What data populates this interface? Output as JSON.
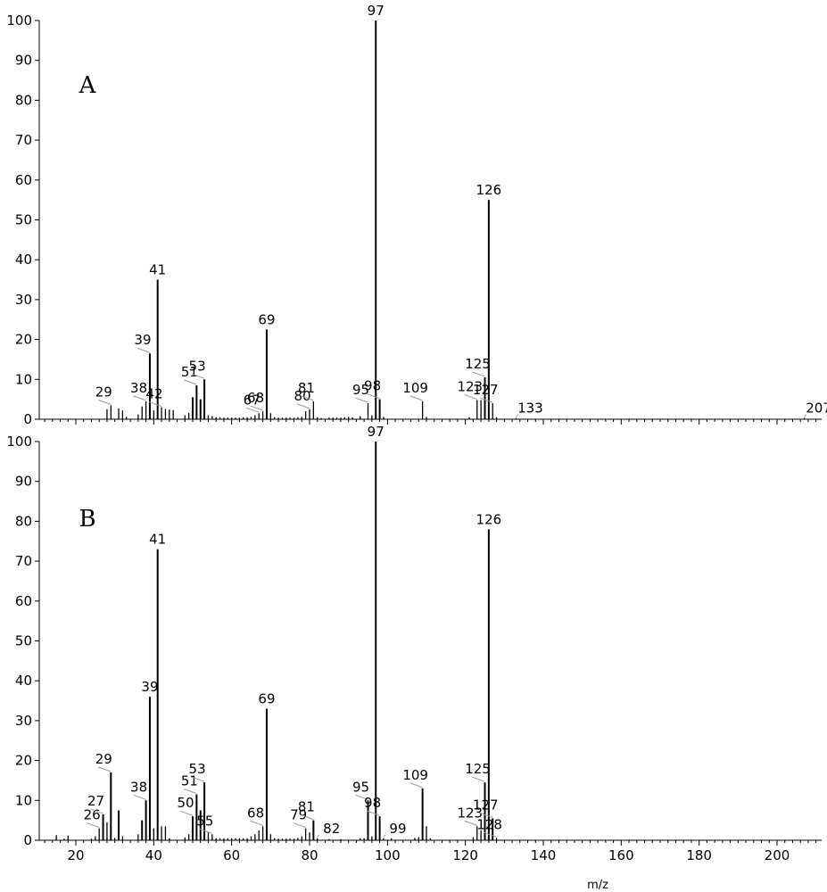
{
  "chart_data": [
    {
      "type": "bar",
      "panel_label": "A",
      "xlim": [
        12,
        210
      ],
      "ylim": [
        0,
        100
      ],
      "yticks": [
        0,
        10,
        20,
        30,
        40,
        50,
        60,
        70,
        80,
        90,
        100
      ],
      "peaks": [
        {
          "x": 28,
          "y": 2.5
        },
        {
          "x": 29,
          "y": 3.5,
          "label": "29"
        },
        {
          "x": 31,
          "y": 2.7
        },
        {
          "x": 32,
          "y": 2.2
        },
        {
          "x": 33,
          "y": 0.6
        },
        {
          "x": 36,
          "y": 1.2
        },
        {
          "x": 37,
          "y": 3.2
        },
        {
          "x": 38,
          "y": 4.5,
          "label": "38"
        },
        {
          "x": 39,
          "y": 16.5,
          "label": "39"
        },
        {
          "x": 40,
          "y": 2.2
        },
        {
          "x": 41,
          "y": 35,
          "label": "41"
        },
        {
          "x": 42,
          "y": 3.0,
          "label": "42"
        },
        {
          "x": 43,
          "y": 2.6
        },
        {
          "x": 44,
          "y": 2.4
        },
        {
          "x": 45,
          "y": 2.3
        },
        {
          "x": 48,
          "y": 1.0
        },
        {
          "x": 49,
          "y": 1.6
        },
        {
          "x": 50,
          "y": 5.5
        },
        {
          "x": 51,
          "y": 8.5,
          "label": "51"
        },
        {
          "x": 52,
          "y": 5.0
        },
        {
          "x": 53,
          "y": 10,
          "label": "53"
        },
        {
          "x": 54,
          "y": 1.0
        },
        {
          "x": 55,
          "y": 0.8
        },
        {
          "x": 56,
          "y": 0.5
        },
        {
          "x": 57,
          "y": 0.5
        },
        {
          "x": 58,
          "y": 0.4
        },
        {
          "x": 59,
          "y": 0.4
        },
        {
          "x": 60,
          "y": 0.4
        },
        {
          "x": 61,
          "y": 0.4
        },
        {
          "x": 62,
          "y": 0.4
        },
        {
          "x": 63,
          "y": 0.5
        },
        {
          "x": 64,
          "y": 0.5
        },
        {
          "x": 65,
          "y": 0.6
        },
        {
          "x": 66,
          "y": 1.0
        },
        {
          "x": 67,
          "y": 1.5,
          "label": "67"
        },
        {
          "x": 68,
          "y": 2.0,
          "label": "68"
        },
        {
          "x": 69,
          "y": 22.5,
          "label": "69"
        },
        {
          "x": 70,
          "y": 1.5
        },
        {
          "x": 71,
          "y": 0.5
        },
        {
          "x": 72,
          "y": 0.4
        },
        {
          "x": 73,
          "y": 0.4
        },
        {
          "x": 74,
          "y": 0.4
        },
        {
          "x": 75,
          "y": 0.4
        },
        {
          "x": 76,
          "y": 0.4
        },
        {
          "x": 77,
          "y": 0.5
        },
        {
          "x": 78,
          "y": 0.6
        },
        {
          "x": 79,
          "y": 2.0
        },
        {
          "x": 80,
          "y": 2.5,
          "label": "80"
        },
        {
          "x": 81,
          "y": 4.5,
          "label": "81"
        },
        {
          "x": 82,
          "y": 0.5
        },
        {
          "x": 83,
          "y": 0.3
        },
        {
          "x": 85,
          "y": 0.4
        },
        {
          "x": 86,
          "y": 0.4
        },
        {
          "x": 87,
          "y": 0.4
        },
        {
          "x": 88,
          "y": 0.4
        },
        {
          "x": 89,
          "y": 0.5
        },
        {
          "x": 90,
          "y": 0.6
        },
        {
          "x": 91,
          "y": 0.5
        },
        {
          "x": 93,
          "y": 0.8
        },
        {
          "x": 95,
          "y": 4.0,
          "label": "95"
        },
        {
          "x": 96,
          "y": 1.0
        },
        {
          "x": 97,
          "y": 100,
          "label": "97"
        },
        {
          "x": 98,
          "y": 5.0,
          "label": "98"
        },
        {
          "x": 99,
          "y": 0.6
        },
        {
          "x": 109,
          "y": 4.5,
          "label": "109"
        },
        {
          "x": 110,
          "y": 0.6
        },
        {
          "x": 121,
          "y": 0.5
        },
        {
          "x": 123,
          "y": 4.8,
          "label": "123"
        },
        {
          "x": 124,
          "y": 4.8
        },
        {
          "x": 125,
          "y": 10.5,
          "label": "125"
        },
        {
          "x": 126,
          "y": 55,
          "label": "126"
        },
        {
          "x": 127,
          "y": 4.0,
          "label": "127"
        },
        {
          "x": 128,
          "y": 0.5
        },
        {
          "x": 133,
          "y": 0.3,
          "label": "133"
        },
        {
          "x": 207,
          "y": 0.3,
          "label": "207"
        }
      ]
    },
    {
      "type": "bar",
      "panel_label": "B",
      "xlim": [
        12,
        210
      ],
      "ylim": [
        0,
        100
      ],
      "yticks": [
        0,
        10,
        20,
        30,
        40,
        50,
        60,
        70,
        80,
        90,
        100
      ],
      "xticks": [
        20,
        40,
        60,
        80,
        100,
        120,
        140,
        160,
        180,
        200
      ],
      "xlabel": "m/z",
      "peaks": [
        {
          "x": 15,
          "y": 1.3
        },
        {
          "x": 17,
          "y": 0.4
        },
        {
          "x": 18,
          "y": 1.2
        },
        {
          "x": 24,
          "y": 0.4
        },
        {
          "x": 25,
          "y": 1.0
        },
        {
          "x": 26,
          "y": 3.0,
          "label": "26"
        },
        {
          "x": 27,
          "y": 6.5,
          "label": "27"
        },
        {
          "x": 28,
          "y": 4.5
        },
        {
          "x": 29,
          "y": 17,
          "label": "29"
        },
        {
          "x": 30,
          "y": 0.6
        },
        {
          "x": 31,
          "y": 7.5
        },
        {
          "x": 32,
          "y": 1.0
        },
        {
          "x": 36,
          "y": 1.5
        },
        {
          "x": 37,
          "y": 5.0
        },
        {
          "x": 38,
          "y": 10,
          "label": "38"
        },
        {
          "x": 39,
          "y": 36,
          "label": "39"
        },
        {
          "x": 40,
          "y": 3.0
        },
        {
          "x": 41,
          "y": 73,
          "label": "41"
        },
        {
          "x": 42,
          "y": 3.5
        },
        {
          "x": 43,
          "y": 3.5
        },
        {
          "x": 44,
          "y": 0.5
        },
        {
          "x": 48,
          "y": 0.7
        },
        {
          "x": 49,
          "y": 1.5
        },
        {
          "x": 50,
          "y": 6.0,
          "label": "50"
        },
        {
          "x": 51,
          "y": 11.5,
          "label": "51"
        },
        {
          "x": 52,
          "y": 7.5
        },
        {
          "x": 53,
          "y": 14.5,
          "label": "53"
        },
        {
          "x": 54,
          "y": 2.0
        },
        {
          "x": 55,
          "y": 1.5,
          "label": "55"
        },
        {
          "x": 56,
          "y": 0.5
        },
        {
          "x": 57,
          "y": 0.5
        },
        {
          "x": 58,
          "y": 0.5
        },
        {
          "x": 59,
          "y": 0.5
        },
        {
          "x": 60,
          "y": 0.5
        },
        {
          "x": 61,
          "y": 0.5
        },
        {
          "x": 62,
          "y": 0.5
        },
        {
          "x": 63,
          "y": 0.5
        },
        {
          "x": 64,
          "y": 0.5
        },
        {
          "x": 65,
          "y": 1.0
        },
        {
          "x": 66,
          "y": 1.5
        },
        {
          "x": 67,
          "y": 2.5
        },
        {
          "x": 68,
          "y": 3.5,
          "label": "68"
        },
        {
          "x": 69,
          "y": 33,
          "label": "69"
        },
        {
          "x": 70,
          "y": 1.5
        },
        {
          "x": 71,
          "y": 0.5
        },
        {
          "x": 72,
          "y": 0.4
        },
        {
          "x": 73,
          "y": 0.4
        },
        {
          "x": 74,
          "y": 0.4
        },
        {
          "x": 75,
          "y": 0.4
        },
        {
          "x": 76,
          "y": 0.4
        },
        {
          "x": 77,
          "y": 0.6
        },
        {
          "x": 78,
          "y": 1.0
        },
        {
          "x": 79,
          "y": 3.0,
          "label": "79"
        },
        {
          "x": 80,
          "y": 2.0
        },
        {
          "x": 81,
          "y": 5.0,
          "label": "81"
        },
        {
          "x": 82,
          "y": 0.5,
          "label": "82"
        },
        {
          "x": 85,
          "y": 0.3
        },
        {
          "x": 88,
          "y": 0.3
        },
        {
          "x": 93,
          "y": 0.5
        },
        {
          "x": 94,
          "y": 0.5
        },
        {
          "x": 95,
          "y": 10,
          "label": "95"
        },
        {
          "x": 96,
          "y": 1.0
        },
        {
          "x": 97,
          "y": 100,
          "label": "97"
        },
        {
          "x": 98,
          "y": 6.0,
          "label": "98"
        },
        {
          "x": 99,
          "y": 0.5,
          "label": "99"
        },
        {
          "x": 101,
          "y": 0.5
        },
        {
          "x": 107,
          "y": 0.6
        },
        {
          "x": 108,
          "y": 0.8
        },
        {
          "x": 109,
          "y": 13,
          "label": "109"
        },
        {
          "x": 110,
          "y": 3.5
        },
        {
          "x": 111,
          "y": 0.5
        },
        {
          "x": 122,
          "y": 0.8
        },
        {
          "x": 123,
          "y": 3.5,
          "label": "123"
        },
        {
          "x": 124,
          "y": 2.5
        },
        {
          "x": 125,
          "y": 14.5,
          "label": "125"
        },
        {
          "x": 126,
          "y": 78,
          "label": "126"
        },
        {
          "x": 127,
          "y": 5.5,
          "label": "127"
        },
        {
          "x": 128,
          "y": 0.6,
          "label": "128"
        }
      ]
    }
  ]
}
